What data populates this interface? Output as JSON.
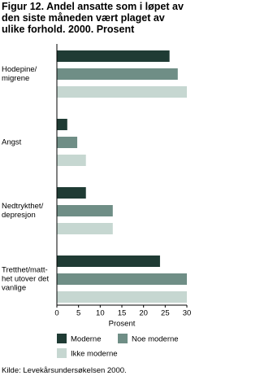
{
  "chart_data": {
    "type": "hbar",
    "title": "Figur 12. Andel ansatte som i løpet av den siste måneden vært plaget av ulike forhold. 2000. Prosent",
    "categories": [
      "Hodepine/\nmigrene",
      "Angst",
      "Nedtrykthet/\ndepresjon",
      "Tretthet/matt-\nhet utover det\nvanlige"
    ],
    "series": [
      {
        "name": "Moderne",
        "color": "#1f3b34",
        "values": [
          26,
          2.4,
          6.7,
          23.8
        ]
      },
      {
        "name": "Noe moderne",
        "color": "#6f8e86",
        "values": [
          27.9,
          4.7,
          12.9,
          30
        ]
      },
      {
        "name": "Ikke moderne",
        "color": "#c6d7d1",
        "values": [
          30,
          6.7,
          12.9,
          30
        ]
      }
    ],
    "xlim": [
      0,
      30
    ],
    "xticks": [
      0,
      5,
      10,
      15,
      20,
      25,
      30
    ],
    "xlabel": "Prosent",
    "source": "Kilde: Levekårsundersøkelsen 2000."
  }
}
